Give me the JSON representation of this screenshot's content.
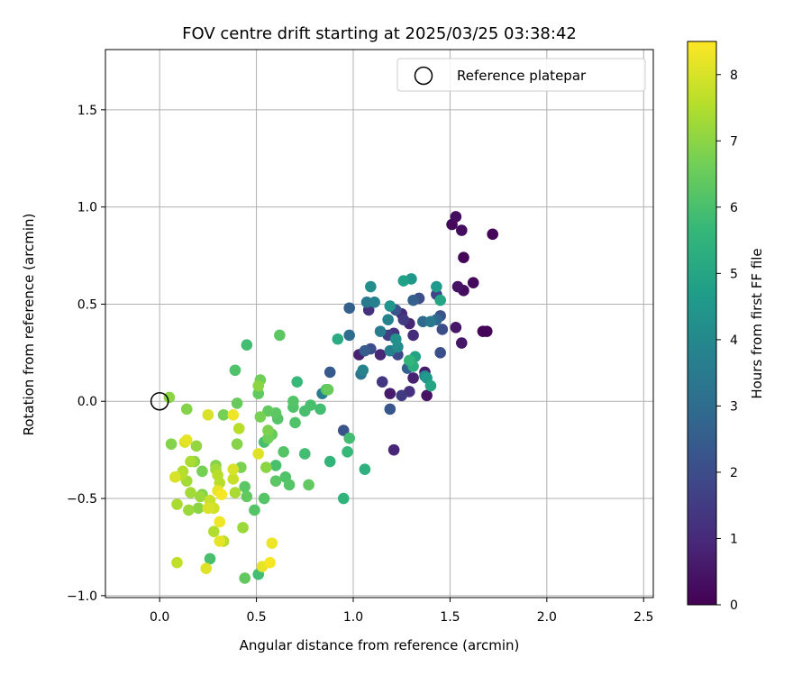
{
  "chart_data": {
    "type": "scatter",
    "title": "FOV centre drift starting at 2025/03/25 03:38:42",
    "xlabel": "Angular distance from reference (arcmin)",
    "ylabel": "Rotation from reference (arcmin)",
    "xlim": [
      -0.28,
      2.55
    ],
    "ylim": [
      -1.01,
      1.81
    ],
    "xticks": [
      0.0,
      0.5,
      1.0,
      1.5,
      2.0,
      2.5
    ],
    "xtick_labels": [
      "0.0",
      "0.5",
      "1.0",
      "1.5",
      "2.0",
      "2.5"
    ],
    "yticks": [
      -1.0,
      -0.5,
      0.0,
      0.5,
      1.0,
      1.5
    ],
    "ytick_labels": [
      "−1.0",
      "−0.5",
      "0.0",
      "0.5",
      "1.0",
      "1.5"
    ],
    "grid": true,
    "legend": {
      "position": "top-right",
      "label": "Reference platepar"
    },
    "reference_point": {
      "x": 0.0,
      "y": 0.0
    },
    "colorbar": {
      "label": "Hours from first FF file",
      "range": [
        0,
        8.5
      ],
      "ticks": [
        0,
        1,
        2,
        3,
        4,
        5,
        6,
        7,
        8
      ],
      "tick_labels": [
        "0",
        "1",
        "2",
        "3",
        "4",
        "5",
        "6",
        "7",
        "8"
      ],
      "colormap": "viridis"
    },
    "points": [
      {
        "x": 1.53,
        "y": 0.95,
        "c": 0.3
      },
      {
        "x": 1.51,
        "y": 0.91,
        "c": 0.2
      },
      {
        "x": 1.56,
        "y": 0.88,
        "c": 0.3
      },
      {
        "x": 1.72,
        "y": 0.86,
        "c": 0.1
      },
      {
        "x": 1.57,
        "y": 0.74,
        "c": 0.1
      },
      {
        "x": 1.62,
        "y": 0.61,
        "c": 0.2
      },
      {
        "x": 1.54,
        "y": 0.59,
        "c": 0.4
      },
      {
        "x": 1.57,
        "y": 0.57,
        "c": 0.3
      },
      {
        "x": 1.53,
        "y": 0.38,
        "c": 0.5
      },
      {
        "x": 1.67,
        "y": 0.36,
        "c": 0.1
      },
      {
        "x": 1.69,
        "y": 0.36,
        "c": 0.1
      },
      {
        "x": 1.56,
        "y": 0.3,
        "c": 0.5
      },
      {
        "x": 1.3,
        "y": 0.63,
        "c": 4.5
      },
      {
        "x": 1.26,
        "y": 0.62,
        "c": 4.8
      },
      {
        "x": 1.43,
        "y": 0.59,
        "c": 4.6
      },
      {
        "x": 1.09,
        "y": 0.59,
        "c": 4.2
      },
      {
        "x": 1.43,
        "y": 0.55,
        "c": 1.8
      },
      {
        "x": 1.34,
        "y": 0.53,
        "c": 2.0
      },
      {
        "x": 1.31,
        "y": 0.52,
        "c": 2.6
      },
      {
        "x": 1.45,
        "y": 0.52,
        "c": 5.0
      },
      {
        "x": 1.07,
        "y": 0.51,
        "c": 3.5
      },
      {
        "x": 1.11,
        "y": 0.51,
        "c": 3.7
      },
      {
        "x": 1.19,
        "y": 0.49,
        "c": 4.4
      },
      {
        "x": 0.98,
        "y": 0.48,
        "c": 2.6
      },
      {
        "x": 1.22,
        "y": 0.47,
        "c": 2.2
      },
      {
        "x": 1.08,
        "y": 0.47,
        "c": 1.2
      },
      {
        "x": 1.25,
        "y": 0.45,
        "c": 1.0
      },
      {
        "x": 1.26,
        "y": 0.42,
        "c": 1.5
      },
      {
        "x": 1.18,
        "y": 0.42,
        "c": 3.8
      },
      {
        "x": 1.45,
        "y": 0.44,
        "c": 2.2
      },
      {
        "x": 1.43,
        "y": 0.42,
        "c": 2.8
      },
      {
        "x": 1.36,
        "y": 0.41,
        "c": 2.9
      },
      {
        "x": 1.4,
        "y": 0.41,
        "c": 3.4
      },
      {
        "x": 1.29,
        "y": 0.4,
        "c": 0.9
      },
      {
        "x": 1.46,
        "y": 0.37,
        "c": 2.0
      },
      {
        "x": 1.14,
        "y": 0.36,
        "c": 3.6
      },
      {
        "x": 1.21,
        "y": 0.35,
        "c": 1.3
      },
      {
        "x": 1.18,
        "y": 0.34,
        "c": 1.6
      },
      {
        "x": 1.31,
        "y": 0.34,
        "c": 1.1
      },
      {
        "x": 0.98,
        "y": 0.34,
        "c": 3.0
      },
      {
        "x": 1.22,
        "y": 0.32,
        "c": 4.3
      },
      {
        "x": 0.92,
        "y": 0.32,
        "c": 5.2
      },
      {
        "x": 1.23,
        "y": 0.28,
        "c": 4.1
      },
      {
        "x": 1.09,
        "y": 0.27,
        "c": 2.0
      },
      {
        "x": 1.06,
        "y": 0.26,
        "c": 2.5
      },
      {
        "x": 1.19,
        "y": 0.26,
        "c": 3.7
      },
      {
        "x": 1.45,
        "y": 0.25,
        "c": 2.1
      },
      {
        "x": 1.03,
        "y": 0.24,
        "c": 0.8
      },
      {
        "x": 1.23,
        "y": 0.24,
        "c": 1.9
      },
      {
        "x": 1.14,
        "y": 0.24,
        "c": 0.9
      },
      {
        "x": 1.32,
        "y": 0.23,
        "c": 4.9
      },
      {
        "x": 1.29,
        "y": 0.21,
        "c": 5.6
      },
      {
        "x": 1.31,
        "y": 0.18,
        "c": 5.3
      },
      {
        "x": 1.28,
        "y": 0.17,
        "c": 2.6
      },
      {
        "x": 1.37,
        "y": 0.15,
        "c": 0.6
      },
      {
        "x": 1.37,
        "y": 0.13,
        "c": 3.9
      },
      {
        "x": 1.38,
        "y": 0.12,
        "c": 4.6
      },
      {
        "x": 1.31,
        "y": 0.12,
        "c": 0.8
      },
      {
        "x": 1.05,
        "y": 0.16,
        "c": 3.8
      },
      {
        "x": 1.04,
        "y": 0.14,
        "c": 3.3
      },
      {
        "x": 0.88,
        "y": 0.15,
        "c": 2.4
      },
      {
        "x": 1.15,
        "y": 0.1,
        "c": 1.4
      },
      {
        "x": 1.4,
        "y": 0.08,
        "c": 5.0
      },
      {
        "x": 1.29,
        "y": 0.05,
        "c": 1.2
      },
      {
        "x": 1.19,
        "y": 0.04,
        "c": 0.6
      },
      {
        "x": 1.25,
        "y": 0.03,
        "c": 1.5
      },
      {
        "x": 1.38,
        "y": 0.03,
        "c": 0.4
      },
      {
        "x": 1.19,
        "y": -0.04,
        "c": 2.3
      },
      {
        "x": 0.95,
        "y": -0.15,
        "c": 2.2
      },
      {
        "x": 1.21,
        "y": -0.25,
        "c": 0.9
      },
      {
        "x": 0.84,
        "y": 0.04,
        "c": 3.6
      },
      {
        "x": 0.45,
        "y": 0.29,
        "c": 5.9
      },
      {
        "x": 0.62,
        "y": 0.34,
        "c": 6.3
      },
      {
        "x": 0.39,
        "y": 0.16,
        "c": 6.1
      },
      {
        "x": 0.71,
        "y": 0.1,
        "c": 5.7
      },
      {
        "x": 0.52,
        "y": 0.11,
        "c": 6.6
      },
      {
        "x": 0.51,
        "y": 0.08,
        "c": 7.0
      },
      {
        "x": 0.87,
        "y": 0.06,
        "c": 6.5
      },
      {
        "x": 0.86,
        "y": 0.06,
        "c": 6.1
      },
      {
        "x": 0.51,
        "y": 0.04,
        "c": 6.4
      },
      {
        "x": 0.69,
        "y": 0.0,
        "c": 6.2
      },
      {
        "x": 0.4,
        "y": -0.01,
        "c": 6.5
      },
      {
        "x": 0.78,
        "y": -0.02,
        "c": 6.0
      },
      {
        "x": 0.69,
        "y": -0.03,
        "c": 6.1
      },
      {
        "x": 0.83,
        "y": -0.04,
        "c": 5.9
      },
      {
        "x": 0.75,
        "y": -0.05,
        "c": 6.0
      },
      {
        "x": 0.56,
        "y": -0.05,
        "c": 6.4
      },
      {
        "x": 0.6,
        "y": -0.06,
        "c": 6.3
      },
      {
        "x": 0.52,
        "y": -0.08,
        "c": 6.7
      },
      {
        "x": 0.61,
        "y": -0.09,
        "c": 6.2
      },
      {
        "x": 0.7,
        "y": -0.11,
        "c": 6.1
      },
      {
        "x": 0.56,
        "y": -0.15,
        "c": 6.8
      },
      {
        "x": 0.58,
        "y": -0.17,
        "c": 6.5
      },
      {
        "x": 0.56,
        "y": -0.19,
        "c": 6.6
      },
      {
        "x": 0.54,
        "y": -0.21,
        "c": 6.0
      },
      {
        "x": 0.98,
        "y": -0.19,
        "c": 5.9
      },
      {
        "x": 0.97,
        "y": -0.26,
        "c": 5.7
      },
      {
        "x": 0.64,
        "y": -0.26,
        "c": 6.2
      },
      {
        "x": 0.75,
        "y": -0.27,
        "c": 5.9
      },
      {
        "x": 0.88,
        "y": -0.31,
        "c": 5.6
      },
      {
        "x": 0.6,
        "y": -0.33,
        "c": 6.0
      },
      {
        "x": 0.55,
        "y": -0.34,
        "c": 7.0
      },
      {
        "x": 1.06,
        "y": -0.35,
        "c": 5.4
      },
      {
        "x": 0.65,
        "y": -0.39,
        "c": 6.1
      },
      {
        "x": 0.6,
        "y": -0.41,
        "c": 6.3
      },
      {
        "x": 0.67,
        "y": -0.43,
        "c": 6.2
      },
      {
        "x": 0.77,
        "y": -0.43,
        "c": 6.4
      },
      {
        "x": 0.95,
        "y": -0.5,
        "c": 5.5
      },
      {
        "x": 0.54,
        "y": -0.5,
        "c": 6.2
      },
      {
        "x": 0.45,
        "y": -0.49,
        "c": 6.4
      },
      {
        "x": 0.44,
        "y": -0.44,
        "c": 6.3
      },
      {
        "x": 0.49,
        "y": -0.56,
        "c": 6.2
      },
      {
        "x": 0.43,
        "y": -0.65,
        "c": 7.2
      },
      {
        "x": 0.26,
        "y": -0.81,
        "c": 6.0
      },
      {
        "x": 0.51,
        "y": -0.89,
        "c": 5.9
      },
      {
        "x": 0.44,
        "y": -0.91,
        "c": 6.4
      },
      {
        "x": 0.05,
        "y": 0.02,
        "c": 7.0
      },
      {
        "x": 0.14,
        "y": -0.04,
        "c": 6.9
      },
      {
        "x": 0.41,
        "y": -0.14,
        "c": 7.6
      },
      {
        "x": 0.33,
        "y": -0.07,
        "c": 6.7
      },
      {
        "x": 0.25,
        "y": -0.07,
        "c": 8.0
      },
      {
        "x": 0.38,
        "y": -0.07,
        "c": 8.3
      },
      {
        "x": 0.06,
        "y": -0.22,
        "c": 6.9
      },
      {
        "x": 0.13,
        "y": -0.21,
        "c": 8.0
      },
      {
        "x": 0.14,
        "y": -0.2,
        "c": 8.2
      },
      {
        "x": 0.19,
        "y": -0.23,
        "c": 7.1
      },
      {
        "x": 0.4,
        "y": -0.22,
        "c": 6.9
      },
      {
        "x": 0.51,
        "y": -0.27,
        "c": 8.1
      },
      {
        "x": 0.16,
        "y": -0.31,
        "c": 7.4
      },
      {
        "x": 0.18,
        "y": -0.31,
        "c": 7.0
      },
      {
        "x": 0.29,
        "y": -0.33,
        "c": 6.9
      },
      {
        "x": 0.29,
        "y": -0.35,
        "c": 7.3
      },
      {
        "x": 0.42,
        "y": -0.34,
        "c": 6.8
      },
      {
        "x": 0.38,
        "y": -0.35,
        "c": 8.0
      },
      {
        "x": 0.12,
        "y": -0.36,
        "c": 7.5
      },
      {
        "x": 0.11,
        "y": -0.38,
        "c": 7.6
      },
      {
        "x": 0.22,
        "y": -0.36,
        "c": 6.7
      },
      {
        "x": 0.08,
        "y": -0.39,
        "c": 8.0
      },
      {
        "x": 0.14,
        "y": -0.41,
        "c": 7.3
      },
      {
        "x": 0.3,
        "y": -0.38,
        "c": 7.6
      },
      {
        "x": 0.38,
        "y": -0.4,
        "c": 7.8
      },
      {
        "x": 0.31,
        "y": -0.42,
        "c": 7.6
      },
      {
        "x": 0.16,
        "y": -0.47,
        "c": 7.3
      },
      {
        "x": 0.22,
        "y": -0.48,
        "c": 6.8
      },
      {
        "x": 0.3,
        "y": -0.46,
        "c": 8.2
      },
      {
        "x": 0.32,
        "y": -0.48,
        "c": 8.4
      },
      {
        "x": 0.39,
        "y": -0.47,
        "c": 7.4
      },
      {
        "x": 0.26,
        "y": -0.51,
        "c": 7.8
      },
      {
        "x": 0.09,
        "y": -0.53,
        "c": 7.4
      },
      {
        "x": 0.2,
        "y": -0.55,
        "c": 7.0
      },
      {
        "x": 0.15,
        "y": -0.56,
        "c": 7.2
      },
      {
        "x": 0.25,
        "y": -0.55,
        "c": 8.0
      },
      {
        "x": 0.28,
        "y": -0.55,
        "c": 7.9
      },
      {
        "x": 0.31,
        "y": -0.62,
        "c": 8.3
      },
      {
        "x": 0.28,
        "y": -0.67,
        "c": 7.5
      },
      {
        "x": 0.31,
        "y": -0.72,
        "c": 8.2
      },
      {
        "x": 0.33,
        "y": -0.72,
        "c": 7.6
      },
      {
        "x": 0.58,
        "y": -0.73,
        "c": 8.3
      },
      {
        "x": 0.09,
        "y": -0.83,
        "c": 7.7
      },
      {
        "x": 0.53,
        "y": -0.85,
        "c": 8.2
      },
      {
        "x": 0.57,
        "y": -0.83,
        "c": 8.4
      },
      {
        "x": 0.24,
        "y": -0.86,
        "c": 8.1
      },
      {
        "x": 0.21,
        "y": -0.49,
        "c": 7.2
      }
    ]
  }
}
